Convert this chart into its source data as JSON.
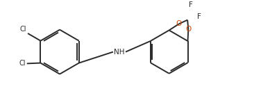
{
  "bg_color": "#ffffff",
  "line_color": "#2a2a2a",
  "o_color": "#cc4400",
  "f_color": "#2a2a2a",
  "nh_color": "#2a2a2a",
  "line_width": 1.4,
  "figsize": [
    3.89,
    1.51
  ],
  "dpi": 100,
  "xlim": [
    0,
    9.0
  ],
  "ylim": [
    0,
    3.5
  ]
}
